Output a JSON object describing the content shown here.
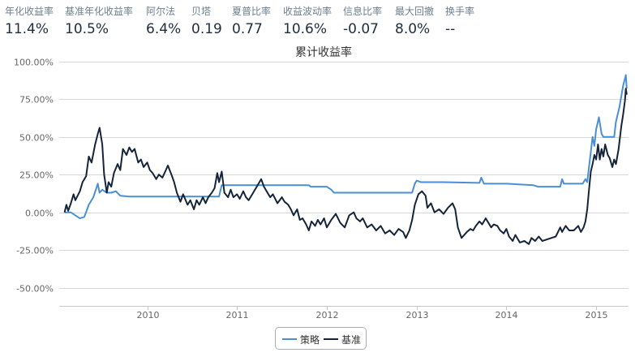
{
  "stats": [
    {
      "label": "年化收益率",
      "value": "11.4%"
    },
    {
      "label": "基准年化收益率",
      "value": "10.5%"
    },
    {
      "label": "阿尔法",
      "value": "6.4%"
    },
    {
      "label": "贝塔",
      "value": "0.19"
    },
    {
      "label": "夏普比率",
      "value": "0.77"
    },
    {
      "label": "收益波动率",
      "value": "10.6%"
    },
    {
      "label": "信息比率",
      "value": "-0.07"
    },
    {
      "label": "最大回撤",
      "value": "8.0%"
    },
    {
      "label": "换手率",
      "value": "--"
    }
  ],
  "colors": {
    "strategy": "#4a8fd3",
    "benchmark": "#14243a",
    "grid": "#d8d8d8",
    "label": "#666666"
  },
  "chart_data": {
    "type": "line",
    "title": "累计收益率",
    "xlabel": "",
    "ylabel": "",
    "xlim": [
      2009.02,
      2015.36
    ],
    "ylim": [
      -62,
      102
    ],
    "y_ticks": [
      100,
      75,
      50,
      25,
      0,
      -25,
      -50
    ],
    "y_tick_labels": [
      "100.00%",
      "75.00%",
      "50.00%",
      "25.00%",
      "0.00%",
      "-25.00%",
      "-50.00%"
    ],
    "x_ticks": [
      2010,
      2011,
      2012,
      2013,
      2014,
      2015
    ],
    "x_tick_labels": [
      "2010",
      "2011",
      "2012",
      "2013",
      "2014",
      "2015"
    ],
    "grid": true,
    "legend_position": "bottom-center",
    "series": [
      {
        "name": "策略",
        "color": "#4a8fd3",
        "points": [
          [
            2009.08,
            0
          ],
          [
            2009.15,
            0
          ],
          [
            2009.2,
            -2
          ],
          [
            2009.25,
            -4
          ],
          [
            2009.3,
            -3
          ],
          [
            2009.35,
            5
          ],
          [
            2009.4,
            10
          ],
          [
            2009.45,
            19
          ],
          [
            2009.47,
            13
          ],
          [
            2009.5,
            15
          ],
          [
            2009.55,
            13
          ],
          [
            2009.6,
            13
          ],
          [
            2009.65,
            14
          ],
          [
            2009.7,
            11
          ],
          [
            2009.8,
            10.5
          ],
          [
            2010.0,
            10.5
          ],
          [
            2010.5,
            10.5
          ],
          [
            2010.8,
            10.5
          ],
          [
            2010.83,
            18
          ],
          [
            2010.86,
            18
          ],
          [
            2011.0,
            18
          ],
          [
            2011.5,
            18
          ],
          [
            2011.8,
            18
          ],
          [
            2011.82,
            17
          ],
          [
            2012.0,
            17
          ],
          [
            2012.05,
            15
          ],
          [
            2012.08,
            13
          ],
          [
            2012.5,
            13
          ],
          [
            2012.95,
            13
          ],
          [
            2012.98,
            19
          ],
          [
            2013.0,
            21
          ],
          [
            2013.05,
            20
          ],
          [
            2013.3,
            20
          ],
          [
            2013.7,
            19.5
          ],
          [
            2013.72,
            23
          ],
          [
            2013.75,
            19
          ],
          [
            2014.0,
            19
          ],
          [
            2014.3,
            18
          ],
          [
            2014.35,
            17
          ],
          [
            2014.6,
            17
          ],
          [
            2014.62,
            22
          ],
          [
            2014.64,
            19
          ],
          [
            2014.85,
            19
          ],
          [
            2014.88,
            22
          ],
          [
            2014.9,
            20
          ],
          [
            2014.93,
            35
          ],
          [
            2014.96,
            50
          ],
          [
            2014.98,
            44
          ],
          [
            2015.0,
            55
          ],
          [
            2015.03,
            63
          ],
          [
            2015.06,
            52
          ],
          [
            2015.08,
            50
          ],
          [
            2015.15,
            50
          ],
          [
            2015.2,
            50
          ],
          [
            2015.22,
            60
          ],
          [
            2015.26,
            70
          ],
          [
            2015.3,
            84
          ],
          [
            2015.33,
            91
          ],
          [
            2015.34,
            82
          ]
        ]
      },
      {
        "name": "基准",
        "color": "#14243a",
        "points": [
          [
            2009.08,
            0
          ],
          [
            2009.1,
            5
          ],
          [
            2009.12,
            1
          ],
          [
            2009.15,
            6
          ],
          [
            2009.18,
            12
          ],
          [
            2009.2,
            8
          ],
          [
            2009.25,
            14
          ],
          [
            2009.28,
            20
          ],
          [
            2009.32,
            24
          ],
          [
            2009.35,
            37
          ],
          [
            2009.38,
            33
          ],
          [
            2009.42,
            45
          ],
          [
            2009.45,
            52
          ],
          [
            2009.47,
            56
          ],
          [
            2009.5,
            45
          ],
          [
            2009.52,
            25
          ],
          [
            2009.55,
            13
          ],
          [
            2009.57,
            20
          ],
          [
            2009.6,
            17
          ],
          [
            2009.63,
            26
          ],
          [
            2009.67,
            32
          ],
          [
            2009.7,
            28
          ],
          [
            2009.73,
            42
          ],
          [
            2009.77,
            38
          ],
          [
            2009.8,
            43
          ],
          [
            2009.83,
            40
          ],
          [
            2009.86,
            42
          ],
          [
            2009.9,
            33
          ],
          [
            2009.93,
            35
          ],
          [
            2009.96,
            30
          ],
          [
            2010.0,
            33
          ],
          [
            2010.03,
            28
          ],
          [
            2010.06,
            26
          ],
          [
            2010.1,
            22
          ],
          [
            2010.13,
            25
          ],
          [
            2010.17,
            23
          ],
          [
            2010.2,
            27
          ],
          [
            2010.23,
            31
          ],
          [
            2010.27,
            25
          ],
          [
            2010.3,
            20
          ],
          [
            2010.33,
            13
          ],
          [
            2010.37,
            7
          ],
          [
            2010.4,
            12
          ],
          [
            2010.45,
            5
          ],
          [
            2010.48,
            8
          ],
          [
            2010.52,
            2
          ],
          [
            2010.55,
            8
          ],
          [
            2010.58,
            5
          ],
          [
            2010.62,
            10
          ],
          [
            2010.65,
            6
          ],
          [
            2010.68,
            10
          ],
          [
            2010.72,
            13
          ],
          [
            2010.75,
            16
          ],
          [
            2010.78,
            26
          ],
          [
            2010.8,
            20
          ],
          [
            2010.83,
            27
          ],
          [
            2010.86,
            13
          ],
          [
            2010.9,
            10
          ],
          [
            2010.93,
            15
          ],
          [
            2010.96,
            10
          ],
          [
            2011.0,
            12
          ],
          [
            2011.03,
            9
          ],
          [
            2011.07,
            14
          ],
          [
            2011.1,
            10
          ],
          [
            2011.13,
            8
          ],
          [
            2011.17,
            12
          ],
          [
            2011.2,
            15
          ],
          [
            2011.23,
            18
          ],
          [
            2011.27,
            22
          ],
          [
            2011.3,
            17
          ],
          [
            2011.33,
            14
          ],
          [
            2011.37,
            10
          ],
          [
            2011.4,
            12
          ],
          [
            2011.45,
            6
          ],
          [
            2011.5,
            10
          ],
          [
            2011.53,
            7
          ],
          [
            2011.57,
            5
          ],
          [
            2011.6,
            2
          ],
          [
            2011.63,
            -2
          ],
          [
            2011.67,
            2
          ],
          [
            2011.7,
            -5
          ],
          [
            2011.73,
            -4
          ],
          [
            2011.77,
            -8
          ],
          [
            2011.8,
            -12
          ],
          [
            2011.83,
            -6
          ],
          [
            2011.87,
            -9
          ],
          [
            2011.9,
            -5
          ],
          [
            2011.93,
            -8
          ],
          [
            2011.97,
            -4
          ],
          [
            2012.0,
            -10
          ],
          [
            2012.05,
            -5
          ],
          [
            2012.1,
            -1
          ],
          [
            2012.15,
            -7
          ],
          [
            2012.2,
            -10
          ],
          [
            2012.25,
            -2
          ],
          [
            2012.3,
            0
          ],
          [
            2012.33,
            -4
          ],
          [
            2012.37,
            -6
          ],
          [
            2012.4,
            -4
          ],
          [
            2012.45,
            -10
          ],
          [
            2012.5,
            -8
          ],
          [
            2012.55,
            -12
          ],
          [
            2012.6,
            -9
          ],
          [
            2012.65,
            -14
          ],
          [
            2012.7,
            -12
          ],
          [
            2012.75,
            -15
          ],
          [
            2012.8,
            -11
          ],
          [
            2012.85,
            -13
          ],
          [
            2012.88,
            -17
          ],
          [
            2012.92,
            -12
          ],
          [
            2012.95,
            -5
          ],
          [
            2012.98,
            5
          ],
          [
            2013.02,
            12
          ],
          [
            2013.06,
            14
          ],
          [
            2013.1,
            11
          ],
          [
            2013.12,
            3
          ],
          [
            2013.16,
            6
          ],
          [
            2013.2,
            0
          ],
          [
            2013.25,
            2
          ],
          [
            2013.3,
            -1
          ],
          [
            2013.35,
            3
          ],
          [
            2013.4,
            6
          ],
          [
            2013.43,
            2
          ],
          [
            2013.46,
            -10
          ],
          [
            2013.5,
            -17
          ],
          [
            2013.53,
            -15
          ],
          [
            2013.56,
            -13
          ],
          [
            2013.6,
            -11
          ],
          [
            2013.63,
            -12
          ],
          [
            2013.66,
            -9
          ],
          [
            2013.7,
            -6
          ],
          [
            2013.73,
            -8
          ],
          [
            2013.77,
            -4
          ],
          [
            2013.8,
            -7
          ],
          [
            2013.83,
            -10
          ],
          [
            2013.86,
            -8
          ],
          [
            2013.9,
            -9
          ],
          [
            2013.93,
            -12
          ],
          [
            2013.97,
            -14
          ],
          [
            2014.0,
            -11
          ],
          [
            2014.03,
            -16
          ],
          [
            2014.07,
            -19
          ],
          [
            2014.1,
            -15
          ],
          [
            2014.15,
            -20
          ],
          [
            2014.2,
            -19
          ],
          [
            2014.25,
            -21
          ],
          [
            2014.28,
            -17
          ],
          [
            2014.32,
            -19
          ],
          [
            2014.36,
            -16
          ],
          [
            2014.4,
            -19
          ],
          [
            2014.45,
            -18
          ],
          [
            2014.5,
            -17
          ],
          [
            2014.55,
            -16
          ],
          [
            2014.6,
            -10
          ],
          [
            2014.62,
            -13
          ],
          [
            2014.66,
            -9
          ],
          [
            2014.7,
            -12
          ],
          [
            2014.75,
            -12
          ],
          [
            2014.8,
            -9
          ],
          [
            2014.83,
            -13
          ],
          [
            2014.86,
            -10
          ],
          [
            2014.88,
            -6
          ],
          [
            2014.9,
            2
          ],
          [
            2014.92,
            15
          ],
          [
            2014.94,
            27
          ],
          [
            2014.96,
            32
          ],
          [
            2014.98,
            38
          ],
          [
            2015.0,
            35
          ],
          [
            2015.02,
            45
          ],
          [
            2015.04,
            35
          ],
          [
            2015.06,
            42
          ],
          [
            2015.08,
            37
          ],
          [
            2015.1,
            45
          ],
          [
            2015.13,
            38
          ],
          [
            2015.15,
            36
          ],
          [
            2015.18,
            30
          ],
          [
            2015.2,
            35
          ],
          [
            2015.22,
            32
          ],
          [
            2015.25,
            42
          ],
          [
            2015.28,
            57
          ],
          [
            2015.3,
            65
          ],
          [
            2015.32,
            74
          ],
          [
            2015.33,
            82
          ],
          [
            2015.34,
            78
          ]
        ]
      }
    ]
  }
}
